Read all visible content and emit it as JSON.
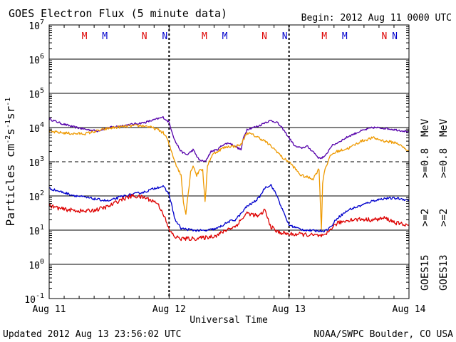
{
  "chart_data": {
    "type": "line",
    "title": "GOES Electron Flux (5 minute data)",
    "begin_label": "Begin: 2012 Aug 11 0000 UTC",
    "xlabel": "Universal Time",
    "ylabel_parts": [
      "Particles cm",
      "-2",
      "s",
      "-1",
      "sr",
      "-1"
    ],
    "x_unit": "days since 2012 Aug 11 0000 UTC",
    "xlim": [
      0,
      3
    ],
    "ylim": [
      -1,
      7
    ],
    "yscale": "log",
    "x_ticks": [
      {
        "x": 0,
        "label": "Aug 11"
      },
      {
        "x": 1,
        "label": "Aug 12"
      },
      {
        "x": 2,
        "label": "Aug 13"
      },
      {
        "x": 3,
        "label": "Aug 14"
      }
    ],
    "y_ticks": [
      {
        "exp": -1,
        "base": "10",
        "sup": "-1"
      },
      {
        "exp": 0,
        "base": "10",
        "sup": "0"
      },
      {
        "exp": 1,
        "base": "10",
        "sup": "1"
      },
      {
        "exp": 2,
        "base": "10",
        "sup": "2"
      },
      {
        "exp": 3,
        "base": "10",
        "sup": "3"
      },
      {
        "exp": 4,
        "base": "10",
        "sup": "4"
      },
      {
        "exp": 5,
        "base": "10",
        "sup": "5"
      },
      {
        "exp": 6,
        "base": "10",
        "sup": "6"
      },
      {
        "exp": 7,
        "base": "10",
        "sup": "7"
      }
    ],
    "solid_gridlines": [
      0,
      1,
      2,
      4,
      5,
      6
    ],
    "dashed_gridlines": [
      3
    ],
    "day_boundaries": [
      1,
      2
    ],
    "markers": [
      {
        "label": "M",
        "x": 0.33,
        "color": "#dd0000"
      },
      {
        "label": "M",
        "x": 0.5,
        "color": "#0000cc"
      },
      {
        "label": "N",
        "x": 0.83,
        "color": "#dd0000"
      },
      {
        "label": "N",
        "x": 1.0,
        "color": "#0000cc"
      },
      {
        "label": "M",
        "x": 1.33,
        "color": "#dd0000"
      },
      {
        "label": "M",
        "x": 1.5,
        "color": "#0000cc"
      },
      {
        "label": "N",
        "x": 1.83,
        "color": "#dd0000"
      },
      {
        "label": "N",
        "x": 2.0,
        "color": "#0000cc"
      },
      {
        "label": "M",
        "x": 2.33,
        "color": "#dd0000"
      },
      {
        "label": "M",
        "x": 2.5,
        "color": "#0000cc"
      },
      {
        "label": "N",
        "x": 2.83,
        "color": "#dd0000"
      },
      {
        "label": "N",
        "x": 3.0,
        "color": "#0000cc"
      }
    ],
    "legend": [
      {
        "text": ">=2",
        "color": "#0000cc"
      },
      {
        "text": ">=2",
        "color": "#dd0000"
      },
      {
        "text": ">=0.8",
        "color": "#5500aa"
      },
      {
        "text": ">=0.8",
        "color": "#ee9900"
      },
      {
        "text": "MeV",
        "color": "#000000"
      },
      {
        "text": "MeV",
        "color": "#000000"
      },
      {
        "text": "GOES15",
        "color": "#000000"
      },
      {
        "text": "GOES13",
        "color": "#000000"
      }
    ],
    "series": [
      {
        "name": "GOES15 >=0.8 MeV",
        "color": "#5500aa",
        "noise": 0.03,
        "points": [
          [
            0,
            4.25
          ],
          [
            0.1,
            4.12
          ],
          [
            0.2,
            4.02
          ],
          [
            0.3,
            3.95
          ],
          [
            0.4,
            3.9
          ],
          [
            0.5,
            4.0
          ],
          [
            0.6,
            4.05
          ],
          [
            0.7,
            4.1
          ],
          [
            0.8,
            4.15
          ],
          [
            0.9,
            4.25
          ],
          [
            0.95,
            4.3
          ],
          [
            1.0,
            4.15
          ],
          [
            1.05,
            3.6
          ],
          [
            1.1,
            3.3
          ],
          [
            1.15,
            3.2
          ],
          [
            1.2,
            3.35
          ],
          [
            1.25,
            3.05
          ],
          [
            1.3,
            3.0
          ],
          [
            1.35,
            3.3
          ],
          [
            1.4,
            3.35
          ],
          [
            1.45,
            3.5
          ],
          [
            1.5,
            3.55
          ],
          [
            1.55,
            3.45
          ],
          [
            1.6,
            3.35
          ],
          [
            1.62,
            3.7
          ],
          [
            1.65,
            3.95
          ],
          [
            1.7,
            4.0
          ],
          [
            1.75,
            4.05
          ],
          [
            1.8,
            4.15
          ],
          [
            1.85,
            4.2
          ],
          [
            1.9,
            4.15
          ],
          [
            1.95,
            3.95
          ],
          [
            2.0,
            3.7
          ],
          [
            2.05,
            3.45
          ],
          [
            2.1,
            3.4
          ],
          [
            2.15,
            3.45
          ],
          [
            2.2,
            3.3
          ],
          [
            2.25,
            3.1
          ],
          [
            2.3,
            3.15
          ],
          [
            2.35,
            3.45
          ],
          [
            2.4,
            3.55
          ],
          [
            2.45,
            3.65
          ],
          [
            2.5,
            3.75
          ],
          [
            2.6,
            3.9
          ],
          [
            2.7,
            4.0
          ],
          [
            2.8,
            3.98
          ],
          [
            2.9,
            3.93
          ],
          [
            3.0,
            3.88
          ]
        ]
      },
      {
        "name": "GOES13 >=0.8 MeV",
        "color": "#ee9900",
        "noise": 0.04,
        "points": [
          [
            0,
            3.88
          ],
          [
            0.1,
            3.85
          ],
          [
            0.2,
            3.82
          ],
          [
            0.3,
            3.82
          ],
          [
            0.4,
            3.9
          ],
          [
            0.5,
            3.98
          ],
          [
            0.6,
            4.02
          ],
          [
            0.7,
            4.05
          ],
          [
            0.8,
            4.05
          ],
          [
            0.9,
            3.95
          ],
          [
            0.95,
            3.85
          ],
          [
            0.98,
            3.7
          ],
          [
            1.02,
            3.3
          ],
          [
            1.06,
            2.9
          ],
          [
            1.1,
            2.6
          ],
          [
            1.12,
            1.8
          ],
          [
            1.14,
            1.5
          ],
          [
            1.18,
            2.7
          ],
          [
            1.2,
            2.9
          ],
          [
            1.23,
            2.6
          ],
          [
            1.26,
            2.8
          ],
          [
            1.28,
            2.75
          ],
          [
            1.3,
            1.8
          ],
          [
            1.32,
            2.9
          ],
          [
            1.36,
            3.2
          ],
          [
            1.4,
            3.3
          ],
          [
            1.45,
            3.4
          ],
          [
            1.5,
            3.45
          ],
          [
            1.55,
            3.45
          ],
          [
            1.6,
            3.5
          ],
          [
            1.62,
            3.65
          ],
          [
            1.65,
            3.85
          ],
          [
            1.7,
            3.78
          ],
          [
            1.75,
            3.7
          ],
          [
            1.8,
            3.6
          ],
          [
            1.85,
            3.45
          ],
          [
            1.9,
            3.3
          ],
          [
            1.95,
            3.1
          ],
          [
            2.0,
            3.0
          ],
          [
            2.05,
            2.8
          ],
          [
            2.1,
            2.6
          ],
          [
            2.15,
            2.55
          ],
          [
            2.2,
            2.5
          ],
          [
            2.25,
            2.8
          ],
          [
            2.27,
            1.0
          ],
          [
            2.28,
            2.4
          ],
          [
            2.3,
            2.8
          ],
          [
            2.35,
            3.2
          ],
          [
            2.4,
            3.3
          ],
          [
            2.45,
            3.35
          ],
          [
            2.5,
            3.4
          ],
          [
            2.6,
            3.6
          ],
          [
            2.7,
            3.7
          ],
          [
            2.8,
            3.6
          ],
          [
            2.9,
            3.55
          ],
          [
            3.0,
            3.3
          ]
        ]
      },
      {
        "name": "GOES15 >=2 MeV",
        "color": "#0000cc",
        "noise": 0.035,
        "points": [
          [
            0,
            2.22
          ],
          [
            0.1,
            2.12
          ],
          [
            0.2,
            2.02
          ],
          [
            0.3,
            1.96
          ],
          [
            0.4,
            1.9
          ],
          [
            0.5,
            1.85
          ],
          [
            0.6,
            1.98
          ],
          [
            0.7,
            2.05
          ],
          [
            0.8,
            2.12
          ],
          [
            0.9,
            2.25
          ],
          [
            0.95,
            2.28
          ],
          [
            1.0,
            2.05
          ],
          [
            1.05,
            1.3
          ],
          [
            1.1,
            1.05
          ],
          [
            1.2,
            1.0
          ],
          [
            1.3,
            0.98
          ],
          [
            1.4,
            1.05
          ],
          [
            1.5,
            1.25
          ],
          [
            1.55,
            1.3
          ],
          [
            1.6,
            1.48
          ],
          [
            1.65,
            1.7
          ],
          [
            1.7,
            1.8
          ],
          [
            1.75,
            1.95
          ],
          [
            1.8,
            2.25
          ],
          [
            1.85,
            2.32
          ],
          [
            1.9,
            2.0
          ],
          [
            1.95,
            1.55
          ],
          [
            2.0,
            1.15
          ],
          [
            2.1,
            1.02
          ],
          [
            2.2,
            0.98
          ],
          [
            2.3,
            0.98
          ],
          [
            2.35,
            1.1
          ],
          [
            2.4,
            1.35
          ],
          [
            2.5,
            1.6
          ],
          [
            2.6,
            1.72
          ],
          [
            2.7,
            1.86
          ],
          [
            2.8,
            1.93
          ],
          [
            2.9,
            1.93
          ],
          [
            3.0,
            1.88
          ]
        ]
      },
      {
        "name": "GOES13 >=2 MeV",
        "color": "#dd0000",
        "noise": 0.06,
        "points": [
          [
            0,
            1.72
          ],
          [
            0.1,
            1.62
          ],
          [
            0.2,
            1.58
          ],
          [
            0.3,
            1.55
          ],
          [
            0.4,
            1.6
          ],
          [
            0.5,
            1.7
          ],
          [
            0.6,
            1.9
          ],
          [
            0.7,
            2.0
          ],
          [
            0.8,
            1.95
          ],
          [
            0.9,
            1.8
          ],
          [
            0.95,
            1.5
          ],
          [
            1.0,
            1.0
          ],
          [
            1.05,
            0.8
          ],
          [
            1.1,
            0.75
          ],
          [
            1.2,
            0.75
          ],
          [
            1.3,
            0.78
          ],
          [
            1.4,
            0.85
          ],
          [
            1.45,
            0.95
          ],
          [
            1.5,
            1.05
          ],
          [
            1.55,
            1.1
          ],
          [
            1.6,
            1.3
          ],
          [
            1.65,
            1.5
          ],
          [
            1.7,
            1.45
          ],
          [
            1.75,
            1.4
          ],
          [
            1.8,
            1.6
          ],
          [
            1.82,
            1.35
          ],
          [
            1.85,
            1.1
          ],
          [
            1.9,
            0.95
          ],
          [
            2.0,
            0.88
          ],
          [
            2.1,
            0.88
          ],
          [
            2.2,
            0.85
          ],
          [
            2.3,
            0.82
          ],
          [
            2.35,
            1.05
          ],
          [
            2.4,
            1.2
          ],
          [
            2.5,
            1.3
          ],
          [
            2.6,
            1.32
          ],
          [
            2.7,
            1.3
          ],
          [
            2.8,
            1.35
          ],
          [
            2.85,
            1.28
          ],
          [
            2.9,
            1.2
          ],
          [
            3.0,
            1.15
          ]
        ]
      }
    ]
  },
  "footer": {
    "updated": "Updated 2012 Aug 13 23:56:02 UTC",
    "source": "NOAA/SWPC Boulder, CO USA"
  }
}
